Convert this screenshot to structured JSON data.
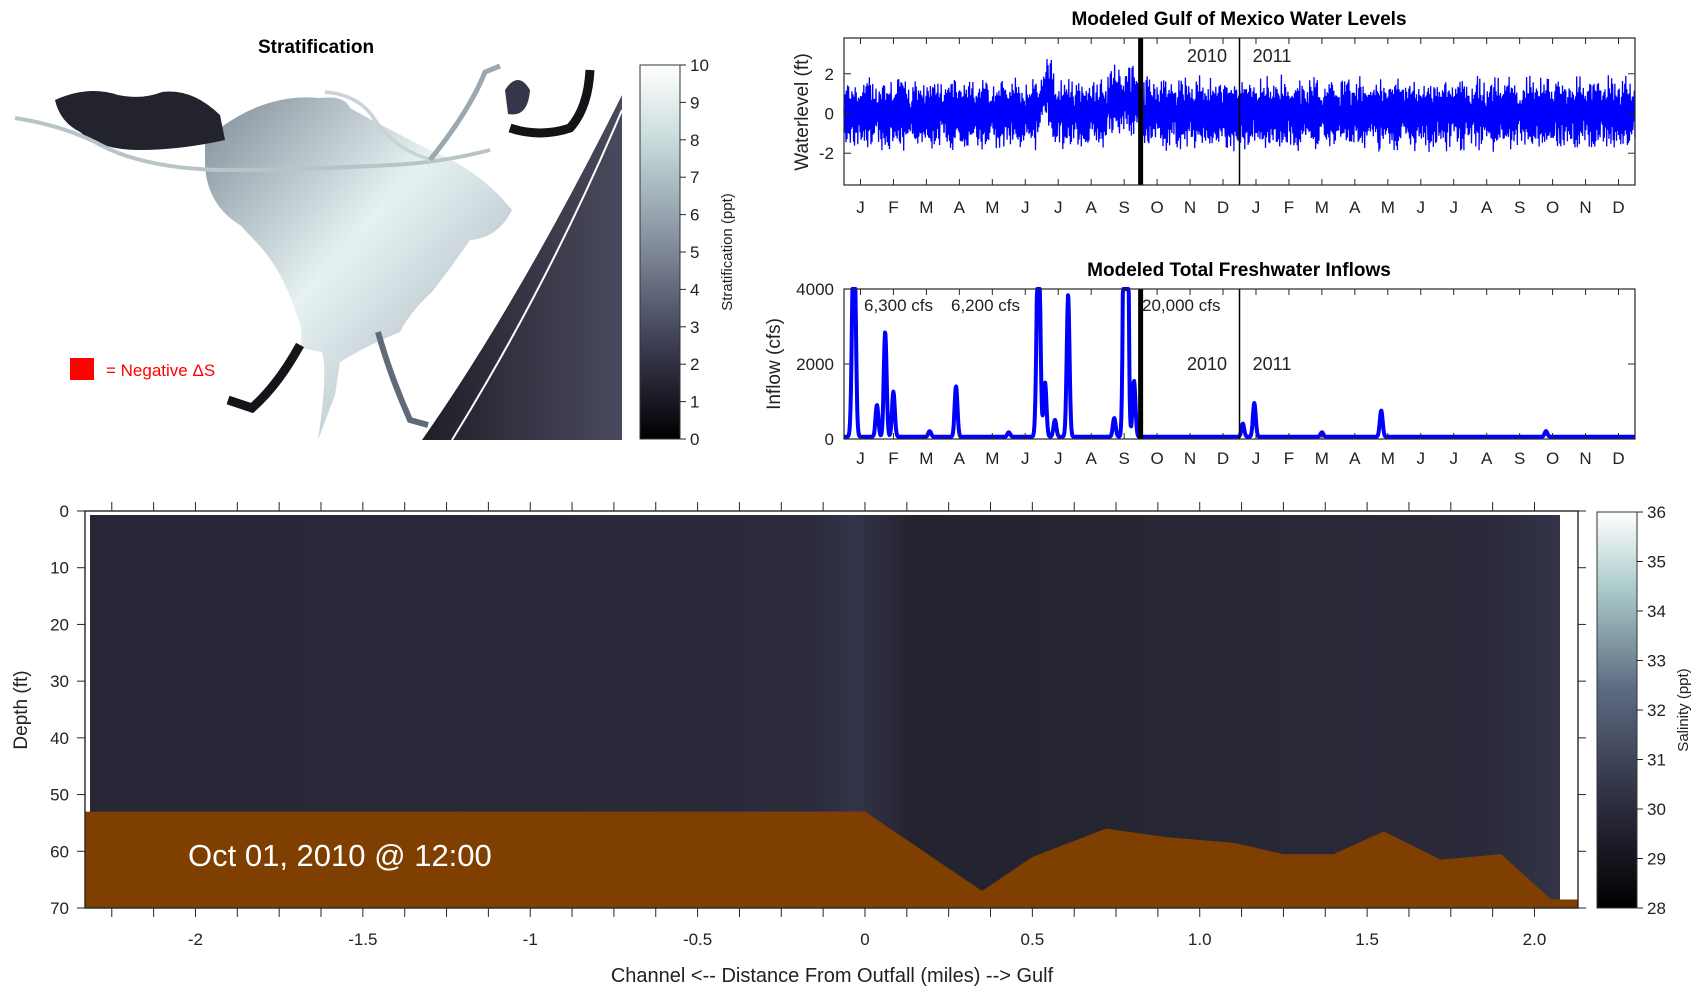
{
  "stratification_map": {
    "title": "Stratification",
    "legend_text": "= Negative ΔS",
    "legend_color": "#ff0000",
    "colorbar": {
      "label": "Stratification (ppt)",
      "ticks": [
        "0",
        "1",
        "2",
        "3",
        "4",
        "5",
        "6",
        "7",
        "8",
        "9",
        "10"
      ],
      "range": [
        0,
        10
      ]
    }
  },
  "chart_data": [
    {
      "id": "water_levels",
      "type": "line",
      "title": "Modeled Gulf of Mexico Water Levels",
      "xlabel": "",
      "ylabel": "Waterlevel (ft)",
      "ylim": [
        -3.6,
        3.8
      ],
      "yticks": [
        "-2",
        "0",
        "2"
      ],
      "yticks_values": [
        -2,
        0,
        2
      ],
      "xticks": [
        "J",
        "F",
        "M",
        "A",
        "M",
        "J",
        "J",
        "A",
        "S",
        "O",
        "N",
        "D",
        "J",
        "F",
        "M",
        "A",
        "M",
        "J",
        "J",
        "A",
        "S",
        "O",
        "N",
        "D"
      ],
      "year_labels": [
        "2010",
        "2011"
      ],
      "series_color": "#0000ff",
      "current_marker_month": 9,
      "year_boundary_month": 12
    },
    {
      "id": "inflows",
      "type": "line",
      "title": "Modeled Total Freshwater Inflows",
      "xlabel": "",
      "ylabel": "Inflow (cfs)",
      "ylim": [
        0,
        4000
      ],
      "yticks": [
        "0",
        "2000",
        "4000"
      ],
      "yticks_values": [
        0,
        2000,
        4000
      ],
      "xticks": [
        "J",
        "F",
        "M",
        "A",
        "M",
        "J",
        "J",
        "A",
        "S",
        "O",
        "N",
        "D",
        "J",
        "F",
        "M",
        "A",
        "M",
        "J",
        "J",
        "A",
        "S",
        "O",
        "N",
        "D"
      ],
      "year_labels": [
        "2010",
        "2011"
      ],
      "annotations": [
        "6,300 cfs",
        "6,200 cfs",
        "20,000 cfs"
      ],
      "series_color": "#0000ff",
      "current_marker_month": 9,
      "year_boundary_month": 12,
      "peaks": [
        {
          "month": 0.3,
          "value": 6300
        },
        {
          "month": 1.0,
          "value": 850
        },
        {
          "month": 1.25,
          "value": 2800
        },
        {
          "month": 1.5,
          "value": 1200
        },
        {
          "month": 2.6,
          "value": 150
        },
        {
          "month": 3.4,
          "value": 1350
        },
        {
          "month": 5.0,
          "value": 120
        },
        {
          "month": 5.9,
          "value": 6200
        },
        {
          "month": 6.1,
          "value": 1450
        },
        {
          "month": 6.4,
          "value": 450
        },
        {
          "month": 6.8,
          "value": 3800
        },
        {
          "month": 8.2,
          "value": 500
        },
        {
          "month": 8.55,
          "value": 20000
        },
        {
          "month": 8.8,
          "value": 1500
        },
        {
          "month": 12.1,
          "value": 350
        },
        {
          "month": 12.45,
          "value": 900
        },
        {
          "month": 14.5,
          "value": 120
        },
        {
          "month": 16.3,
          "value": 700
        },
        {
          "month": 21.3,
          "value": 150
        }
      ]
    },
    {
      "id": "salinity_transect",
      "type": "area",
      "title": "",
      "xlabel": "Channel <-- Distance From Outfall (miles) --> Gulf",
      "ylabel": "Depth (ft)",
      "xlim": [
        -2.33,
        2.13
      ],
      "ylim": [
        70,
        0
      ],
      "xticks": [
        "-2",
        "-1.5",
        "-1",
        "-0.5",
        "0",
        "0.5",
        "1.0",
        "1.5",
        "2.0"
      ],
      "xticks_values": [
        -2,
        -1.5,
        -1,
        -0.5,
        0,
        0.5,
        1.0,
        1.5,
        2.0
      ],
      "yticks": [
        "0",
        "10",
        "20",
        "30",
        "40",
        "50",
        "60",
        "70"
      ],
      "yticks_values": [
        0,
        10,
        20,
        30,
        40,
        50,
        60,
        70
      ],
      "timestamp": "Oct 01, 2010 @ 12:00",
      "bottom_profile": {
        "x": [
          -2.33,
          0.0,
          0.2,
          0.35,
          0.5,
          0.72,
          0.9,
          1.1,
          1.25,
          1.4,
          1.55,
          1.72,
          1.9,
          2.05,
          2.13
        ],
        "depth": [
          53,
          53,
          61,
          67,
          61,
          56,
          57.5,
          58.5,
          60.5,
          60.5,
          56.5,
          61.5,
          60.5,
          68.5,
          68.5
        ]
      },
      "bottom_color": "#7f3f00",
      "colorbar": {
        "label": "Salinity (ppt)",
        "ticks": [
          "28",
          "29",
          "30",
          "31",
          "32",
          "33",
          "34",
          "35",
          "36"
        ],
        "range": [
          28,
          36
        ]
      }
    }
  ]
}
